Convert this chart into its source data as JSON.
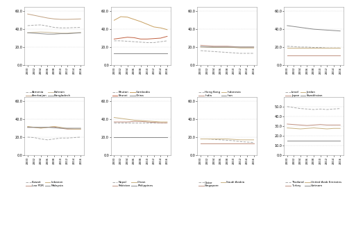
{
  "years": [
    2000,
    2002,
    2004,
    2006,
    2008,
    2010,
    2012,
    2014,
    2016
  ],
  "panel1": {
    "countries": [
      "Armenia",
      "Azerbaijan",
      "Bahrain",
      "Bangladesh"
    ],
    "styles": [
      "--",
      "-",
      "-",
      "-"
    ],
    "colors": [
      "#aaaaaa",
      "#c0a080",
      "#c8b898",
      "#888888"
    ],
    "data": [
      [
        44.0,
        44.5,
        44.8,
        43.5,
        42.0,
        41.5,
        41.5,
        41.8,
        42.0
      ],
      [
        57.0,
        55.5,
        54.0,
        52.5,
        51.5,
        51.0,
        51.0,
        51.2,
        51.5
      ],
      [
        36.0,
        36.5,
        36.8,
        36.5,
        36.0,
        35.5,
        35.5,
        36.0,
        36.2
      ],
      [
        36.0,
        35.5,
        35.0,
        34.5,
        34.5,
        35.0,
        35.0,
        35.5,
        36.0
      ]
    ]
  },
  "panel2": {
    "countries": [
      "Bhutan",
      "Brunei",
      "Cambodia",
      "China"
    ],
    "styles": [
      "--",
      "-",
      "-",
      "-"
    ],
    "colors": [
      "#aaaaaa",
      "#c06040",
      "#c8a060",
      "#888888"
    ],
    "data": [
      [
        27.0,
        27.0,
        26.5,
        26.0,
        25.5,
        25.0,
        25.0,
        26.0,
        27.0
      ],
      [
        29.0,
        30.0,
        31.0,
        30.5,
        29.0,
        29.0,
        29.5,
        30.0,
        32.0
      ],
      [
        50.0,
        54.0,
        53.5,
        51.0,
        48.5,
        45.5,
        42.5,
        41.5,
        39.5
      ],
      [
        13.0,
        13.0,
        13.0,
        13.0,
        13.0,
        13.0,
        13.0,
        13.0,
        13.0
      ]
    ]
  },
  "panel3": {
    "countries": [
      "Hong Kong",
      "India",
      "Indonesia",
      "Iran"
    ],
    "styles": [
      "--",
      "-",
      "-",
      "-"
    ],
    "colors": [
      "#aaaaaa",
      "#c09080",
      "#c8b080",
      "#888888"
    ],
    "data": [
      [
        16.0,
        15.5,
        15.0,
        14.5,
        14.0,
        13.5,
        13.0,
        13.0,
        13.0
      ],
      [
        22.0,
        21.5,
        21.0,
        21.0,
        21.0,
        20.5,
        20.0,
        20.0,
        20.0
      ],
      [
        20.0,
        20.0,
        19.5,
        19.5,
        19.5,
        19.5,
        19.0,
        19.0,
        19.0
      ],
      [
        20.5,
        20.0,
        20.0,
        20.0,
        20.0,
        20.0,
        20.0,
        20.0,
        20.0
      ]
    ]
  },
  "panel4": {
    "countries": [
      "Israel",
      "Japan",
      "Jordan",
      "Kazakhstan"
    ],
    "styles": [
      "--",
      "-",
      "-",
      "-"
    ],
    "colors": [
      "#aaaaaa",
      "#c09080",
      "#c8b080",
      "#888888"
    ],
    "data": [
      [
        21.0,
        20.5,
        20.0,
        20.0,
        19.5,
        19.5,
        19.0,
        19.0,
        19.0
      ],
      [
        10.5,
        10.5,
        10.5,
        10.5,
        10.5,
        10.5,
        10.5,
        10.5,
        10.5
      ],
      [
        19.5,
        19.5,
        19.5,
        19.5,
        19.5,
        19.5,
        19.5,
        19.5,
        19.5
      ],
      [
        44.0,
        43.0,
        42.0,
        41.0,
        40.0,
        39.5,
        39.0,
        38.5,
        38.0
      ]
    ]
  },
  "panel5": {
    "countries": [
      "Kuwait",
      "Lao PDR",
      "Lebanon",
      "Malaysia"
    ],
    "styles": [
      "--",
      "-",
      "-",
      "-"
    ],
    "colors": [
      "#aaaaaa",
      "#c09080",
      "#c8b080",
      "#888888"
    ],
    "data": [
      [
        20.0,
        19.5,
        18.0,
        17.0,
        18.0,
        19.0,
        19.0,
        19.5,
        20.0
      ],
      [
        31.0,
        31.0,
        30.5,
        31.0,
        31.5,
        30.0,
        29.0,
        29.0,
        29.0
      ],
      [
        32.0,
        31.0,
        30.0,
        31.0,
        32.0,
        31.0,
        29.5,
        29.0,
        29.0
      ],
      [
        31.0,
        31.0,
        31.0,
        31.0,
        30.5,
        30.0,
        30.0,
        30.0,
        30.0
      ]
    ]
  },
  "panel6": {
    "countries": [
      "Nepal",
      "Pakistan",
      "Oman",
      "Philippines"
    ],
    "styles": [
      "--",
      "-",
      "-",
      "-"
    ],
    "colors": [
      "#aaaaaa",
      "#c09080",
      "#c8b080",
      "#888888"
    ],
    "data": [
      [
        36.0,
        36.0,
        36.0,
        36.0,
        36.0,
        36.0,
        36.0,
        36.0,
        36.0
      ],
      [
        37.0,
        37.0,
        37.0,
        37.5,
        37.5,
        37.0,
        36.5,
        36.0,
        36.0
      ],
      [
        42.0,
        41.0,
        40.0,
        39.0,
        38.5,
        38.0,
        37.5,
        37.0,
        37.0
      ],
      [
        20.0,
        20.0,
        20.0,
        20.0,
        20.0,
        20.0,
        20.0,
        20.0,
        20.0
      ]
    ]
  },
  "panel7": {
    "countries": [
      "Qatar",
      "Singapore",
      "Saudi Arabia"
    ],
    "styles": [
      "--",
      "-",
      "-"
    ],
    "colors": [
      "#aaaaaa",
      "#c09080",
      "#c8b080"
    ],
    "data": [
      [
        18.0,
        18.0,
        17.5,
        17.0,
        16.5,
        16.0,
        15.0,
        14.5,
        14.0
      ],
      [
        13.0,
        13.0,
        13.0,
        13.0,
        13.0,
        13.0,
        13.0,
        13.0,
        13.0
      ],
      [
        18.0,
        18.0,
        18.0,
        18.0,
        18.0,
        17.5,
        17.0,
        17.0,
        17.0
      ]
    ]
  },
  "panel8": {
    "countries": [
      "Thailand",
      "Turkey",
      "United Arab Emirates",
      "Vietnam"
    ],
    "styles": [
      "--",
      "-",
      "-",
      "-"
    ],
    "colors": [
      "#aaaaaa",
      "#c09080",
      "#c8b080",
      "#888888"
    ],
    "data": [
      [
        50.0,
        49.0,
        48.0,
        47.5,
        47.0,
        47.5,
        47.0,
        47.5,
        48.0
      ],
      [
        32.0,
        31.5,
        31.0,
        30.5,
        31.0,
        31.5,
        31.0,
        31.0,
        31.0
      ],
      [
        28.0,
        27.5,
        27.0,
        27.5,
        28.0,
        27.5,
        27.0,
        27.5,
        27.5
      ],
      [
        15.0,
        15.0,
        15.0,
        15.0,
        15.0,
        15.0,
        15.0,
        15.0,
        15.0
      ]
    ]
  }
}
